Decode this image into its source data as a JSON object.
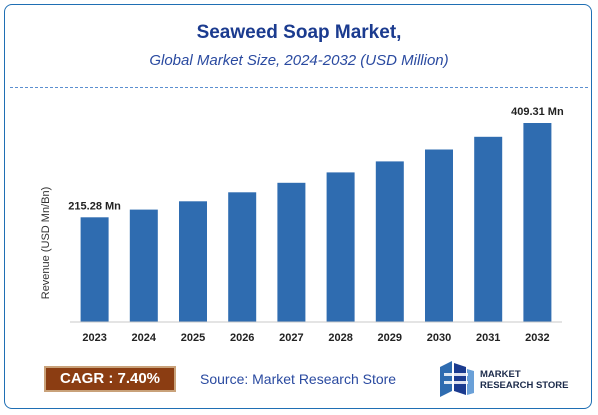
{
  "header": {
    "title": "Seaweed Soap Market,",
    "subtitle": "Global Market Size, 2024-2032 (USD Million)"
  },
  "footer": {
    "cagr": "CAGR : 7.40%",
    "source": "Source: Market Research Store",
    "logo_line1": "MARKET",
    "logo_line2": "RESEARCH STORE"
  },
  "colors": {
    "bar": "#2f6cb0",
    "title": "#1b3b8f",
    "cagr_bg": "#8b3d12"
  },
  "chart_data": {
    "type": "bar",
    "categories": [
      "2023",
      "2024",
      "2025",
      "2026",
      "2027",
      "2028",
      "2029",
      "2030",
      "2031",
      "2032"
    ],
    "values": [
      215.28,
      231.2,
      248.3,
      266.7,
      286.4,
      307.6,
      330.4,
      354.8,
      381.0,
      409.31
    ],
    "data_labels": [
      {
        "index": 0,
        "text": "215.28 Mn"
      },
      {
        "index": 9,
        "text": "409.31 Mn"
      }
    ],
    "ylabel": "Revenue (USD Mn/Bn)",
    "xlabel": "",
    "ylim": [
      0,
      409.31
    ],
    "grid": false,
    "legend": "none"
  }
}
